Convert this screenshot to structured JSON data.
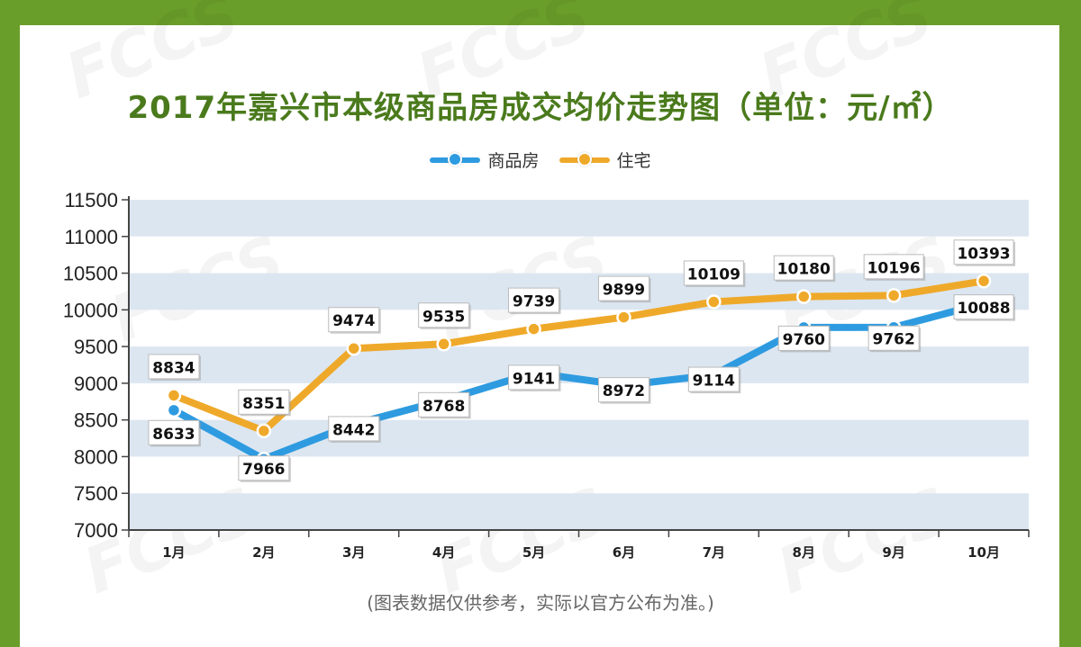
{
  "header": {
    "title": "2017年嘉兴市本级商品房成交均价走势图（单位：元/㎡）"
  },
  "footer": {
    "note": "(图表数据仅供参考，实际以官方公布为准。)"
  },
  "chart_data": {
    "type": "line",
    "title": "2017年嘉兴市本级商品房成交均价走势图（单位：元/㎡）",
    "categories": [
      "1月",
      "2月",
      "3月",
      "4月",
      "5月",
      "6月",
      "7月",
      "8月",
      "9月",
      "10月"
    ],
    "series": [
      {
        "name": "商品房",
        "color": "#2e9be0",
        "values": [
          8633,
          7966,
          8442,
          8768,
          9141,
          8972,
          9114,
          9760,
          9762,
          10088
        ]
      },
      {
        "name": "住宅",
        "color": "#efa92a",
        "values": [
          8834,
          8351,
          9474,
          9535,
          9739,
          9899,
          10109,
          10180,
          10196,
          10393
        ]
      }
    ],
    "ylim": [
      7000,
      11500
    ],
    "yticks": [
      7000,
      7500,
      8000,
      8500,
      9000,
      9500,
      10000,
      10500,
      11000,
      11500
    ],
    "grid": "alternating horizontal bands",
    "legend": "top-center",
    "data_labels": true
  }
}
